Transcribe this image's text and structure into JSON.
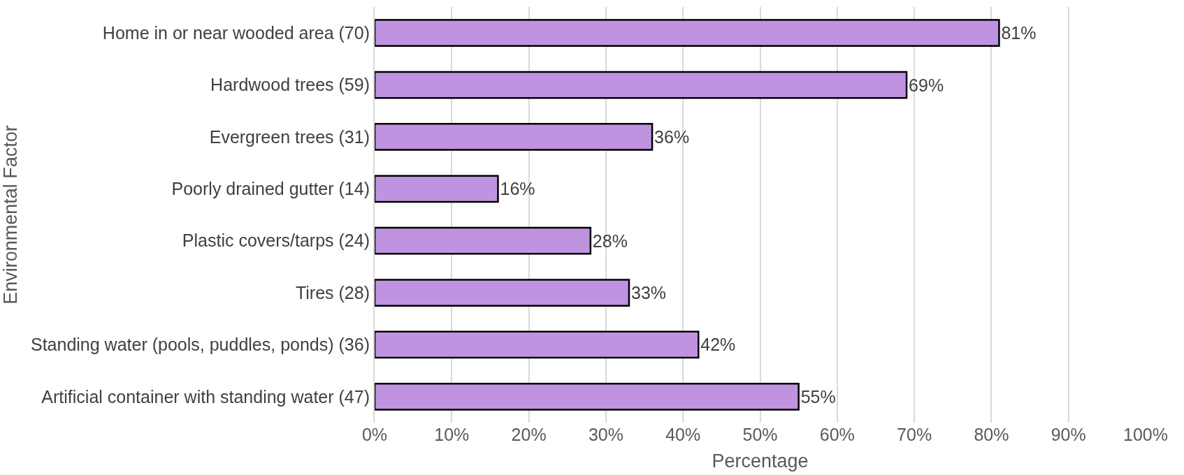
{
  "chart_data": {
    "type": "bar",
    "orientation": "horizontal",
    "xlabel": "Percentage",
    "ylabel": "Environmental Factor",
    "categories": [
      "Home in or near wooded area (70)",
      "Hardwood trees (59)",
      "Evergreen trees (31)",
      "Poorly drained gutter (14)",
      "Plastic covers/tarps (24)",
      "Tires (28)",
      "Standing water (pools, puddles, ponds) (36)",
      "Artificial container with standing water (47)"
    ],
    "values": [
      81,
      69,
      36,
      16,
      28,
      33,
      42,
      55
    ],
    "value_labels": [
      "81%",
      "69%",
      "36%",
      "16%",
      "28%",
      "33%",
      "42%",
      "55%"
    ],
    "color": "#c093e0",
    "xlim": [
      0,
      100
    ],
    "xticks": [
      {
        "value": 0,
        "label": "0%"
      },
      {
        "value": 10,
        "label": "10%"
      },
      {
        "value": 20,
        "label": "20%"
      },
      {
        "value": 30,
        "label": "30%"
      },
      {
        "value": 40,
        "label": "40%"
      },
      {
        "value": 50,
        "label": "50%"
      },
      {
        "value": 60,
        "label": "60%"
      },
      {
        "value": 70,
        "label": "70%"
      },
      {
        "value": 80,
        "label": "80%"
      },
      {
        "value": 90,
        "label": "90%"
      },
      {
        "value": 100,
        "label": "100%"
      }
    ],
    "grid": "x",
    "legend": false
  }
}
